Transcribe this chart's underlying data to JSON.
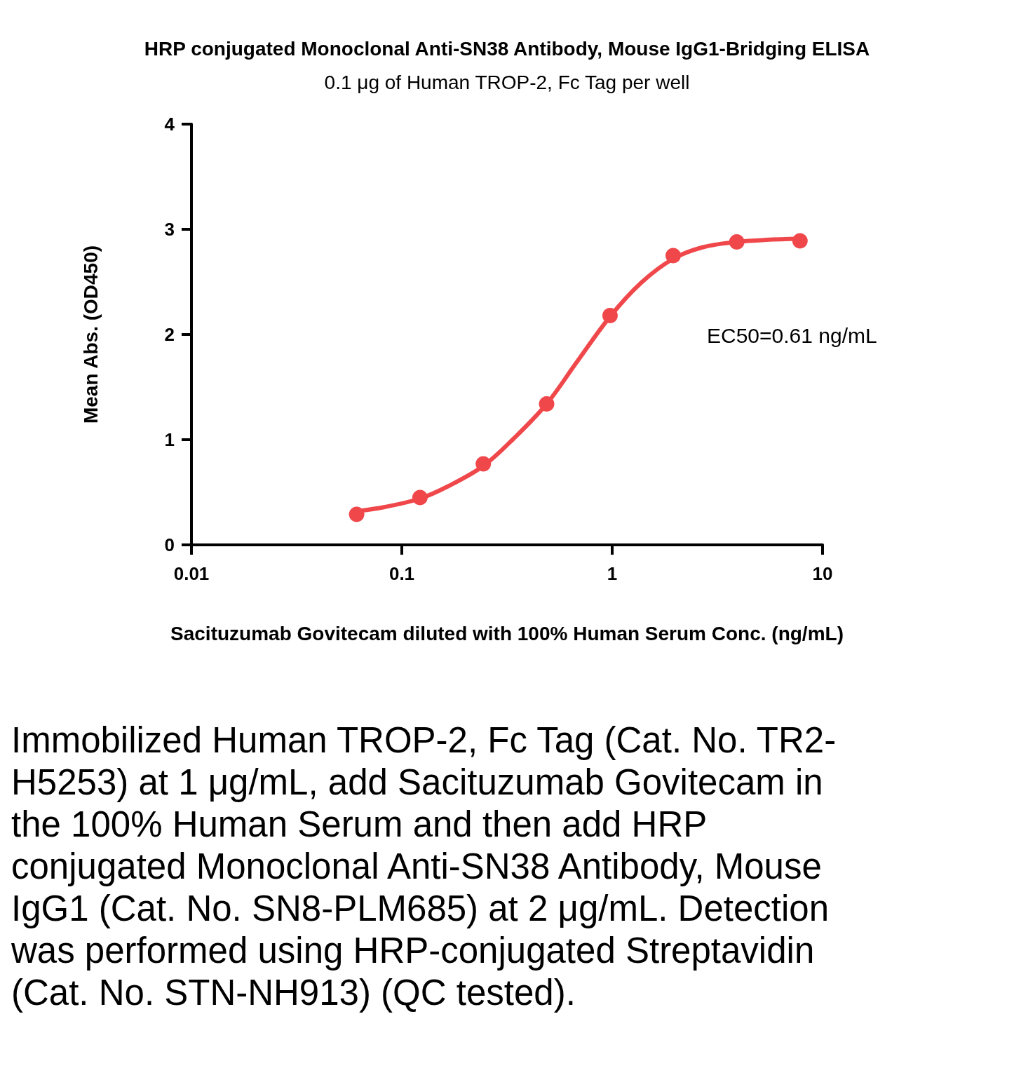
{
  "chart_data": {
    "type": "scatter",
    "title": "HRP conjugated Monoclonal Anti-SN38 Antibody, Mouse IgG1-Bridging ELISA",
    "subtitle": "0.1 μg of Human TROP-2, Fc Tag per well",
    "xlabel": "Sacituzumab Govitecam diluted with 100% Human Serum Conc. (ng/mL)",
    "ylabel": "Mean Abs. (OD450)",
    "x": [
      0.061,
      0.122,
      0.244,
      0.488,
      0.977,
      1.95,
      3.91,
      7.81
    ],
    "series": [
      {
        "color": "#f0474b",
        "marker": "circle",
        "values": [
          0.29,
          0.45,
          0.77,
          1.34,
          2.18,
          2.75,
          2.88,
          2.89
        ]
      },
      {
        "type": "line",
        "color": "#f0474b",
        "marker": "none",
        "line_style": "solid",
        "x": [
          0.061,
          0.083,
          0.122,
          0.167,
          0.244,
          0.34,
          0.488,
          0.68,
          0.977,
          1.37,
          1.95,
          2.7,
          3.91,
          5.4,
          7.81
        ],
        "values": [
          0.32,
          0.36,
          0.44,
          0.56,
          0.75,
          1.01,
          1.34,
          1.74,
          2.17,
          2.49,
          2.72,
          2.83,
          2.88,
          2.9,
          2.91
        ]
      }
    ],
    "xlim": [
      0.01,
      10
    ],
    "xticks": [
      0.01,
      0.1,
      1,
      10
    ],
    "ylim": [
      0,
      4
    ],
    "yticks": [
      0,
      1,
      2,
      3,
      4
    ],
    "log": "x",
    "grid": false,
    "annotations": [
      "EC50=0.61 ng/mL",
      "Immobilized Human TROP-2, Fc Tag (Cat. No. TR2-H5253) at 1 μg/mL, add Sacituzumab Govitecam in the 100% Human Serum and then add HRP conjugated Monoclonal Anti-SN38 Antibody, Mouse IgG1 (Cat. No. SN8-PLM685) at 2 μg/mL. Detection was performed using HRP-conjugated Streptavidin (Cat. No. STN-NH913) (QC tested)."
    ]
  }
}
